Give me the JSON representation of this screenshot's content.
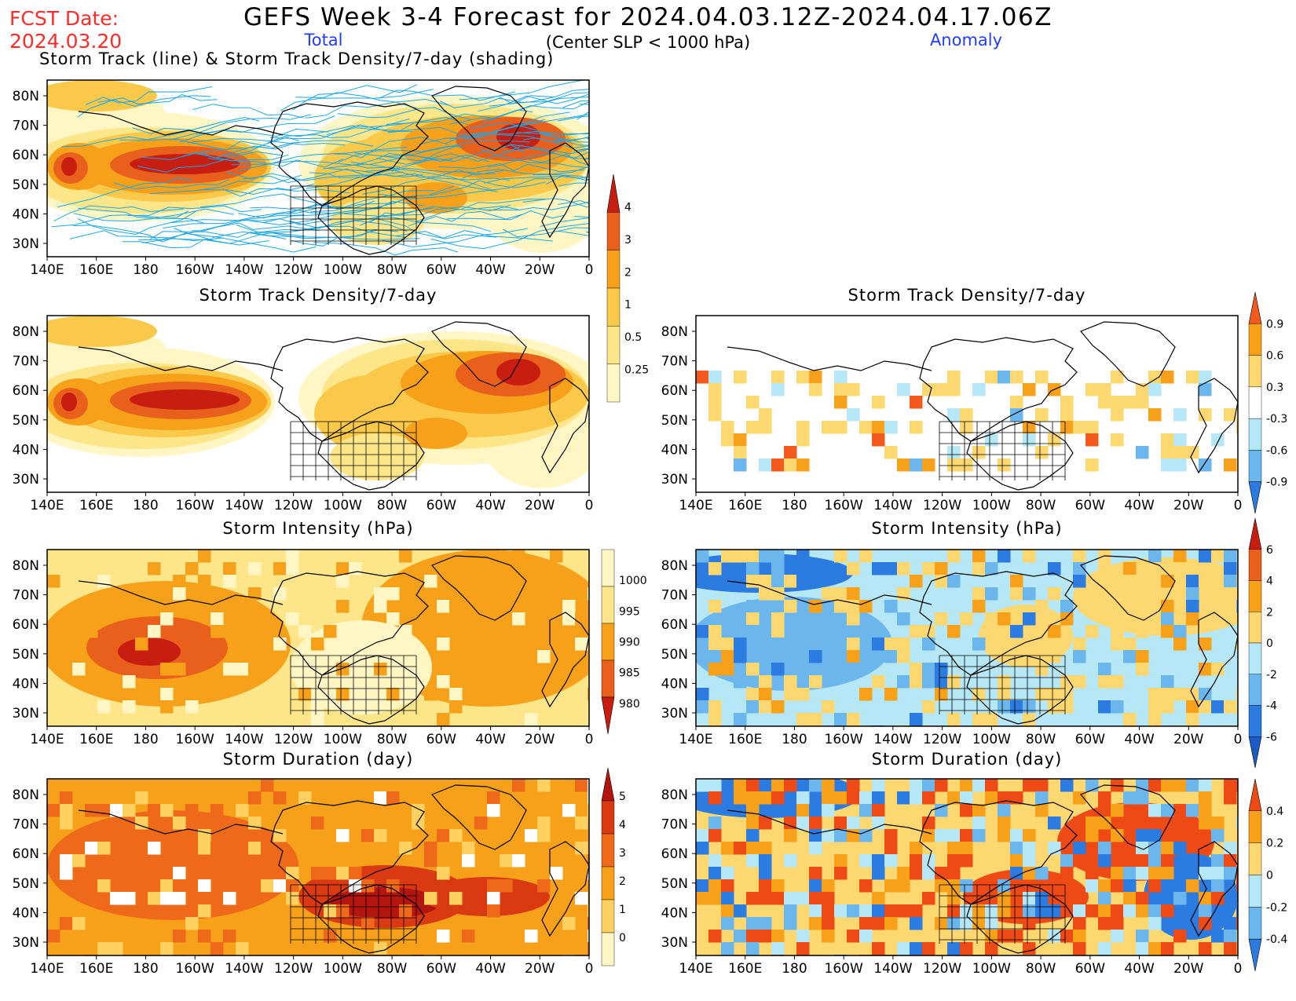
{
  "header": {
    "fcst_label": "FCST Date:",
    "fcst_date": "2024.03.20",
    "title": "GEFS Week 3-4 Forecast for 2024.04.03.12Z-2024.04.17.06Z",
    "col_total": "Total",
    "col_note": "(Center SLP < 1000 hPa)",
    "col_anomaly": "Anomaly"
  },
  "axes": {
    "lon_labels": [
      "140E",
      "160E",
      "180",
      "160W",
      "140W",
      "120W",
      "100W",
      "80W",
      "60W",
      "40W",
      "20W",
      "0"
    ],
    "lat_labels": [
      "80N",
      "70N",
      "60N",
      "50N",
      "40N",
      "30N"
    ]
  },
  "panels": [
    {
      "id": "track",
      "title": "Storm Track (line) & Storm Track Density/7-day (shading)",
      "kind": "total-density-tracks"
    },
    {
      "id": "density_total",
      "title": "Storm Track Density/7-day",
      "kind": "total-density"
    },
    {
      "id": "density_anom",
      "title": "Storm Track Density/7-day",
      "kind": "anomaly-density"
    },
    {
      "id": "intensity_total",
      "title": "Storm Intensity (hPa)",
      "kind": "total-intensity"
    },
    {
      "id": "intensity_anom",
      "title": "Storm Intensity (hPa)",
      "kind": "anomaly-intensity"
    },
    {
      "id": "duration_total",
      "title": "Storm Duration (day)",
      "kind": "total-duration"
    },
    {
      "id": "duration_anom",
      "title": "Storm Duration (day)",
      "kind": "anomaly-duration"
    }
  ],
  "colorbars": {
    "density_total": {
      "labels": [
        "4",
        "3",
        "2",
        "1",
        "0.5",
        "0.25"
      ],
      "colors": [
        "#c81e12",
        "#e8601c",
        "#f7a11a",
        "#fbc94a",
        "#fde68a",
        "#fff6c4"
      ]
    },
    "density_anom": {
      "labels": [
        "0.9",
        "0.6",
        "0.3",
        "-0.3",
        "-0.6",
        "-0.9"
      ],
      "colors": [
        "#f25a1d",
        "#f7a11a",
        "#fdd871",
        "#ffffff",
        "#b5e7f7",
        "#6cb6ee",
        "#2b7be0"
      ]
    },
    "intensity_total": {
      "labels": [
        "1000",
        "995",
        "990",
        "985",
        "980"
      ],
      "colors": [
        "#fff6c4",
        "#fde68a",
        "#f7a11a",
        "#e8601c",
        "#c81e12"
      ]
    },
    "intensity_anom": {
      "labels": [
        "6",
        "4",
        "2",
        "0",
        "-2",
        "-4",
        "-6"
      ],
      "colors": [
        "#c81e12",
        "#e8601c",
        "#f7a11a",
        "#fdd871",
        "#b5e7f7",
        "#6cb6ee",
        "#2b7be0",
        "#1a5bc4"
      ]
    },
    "duration_total": {
      "labels": [
        "5",
        "4",
        "3",
        "2",
        "1",
        "0"
      ],
      "colors": [
        "#b3160f",
        "#d93a12",
        "#ee6a1a",
        "#f7a11a",
        "#fdd060",
        "#fff6c4"
      ]
    },
    "duration_anom": {
      "labels": [
        "0.4",
        "0.2",
        "0",
        "-0.2",
        "-0.4"
      ],
      "colors": [
        "#ee4a15",
        "#f7a11a",
        "#fdd871",
        "#b5e7f7",
        "#6cb6ee",
        "#2b7be0"
      ]
    }
  },
  "colors": {
    "title_red": "#ff2a2a",
    "label_blue": "#1f3cff",
    "track_line": "#1aa7e6"
  }
}
